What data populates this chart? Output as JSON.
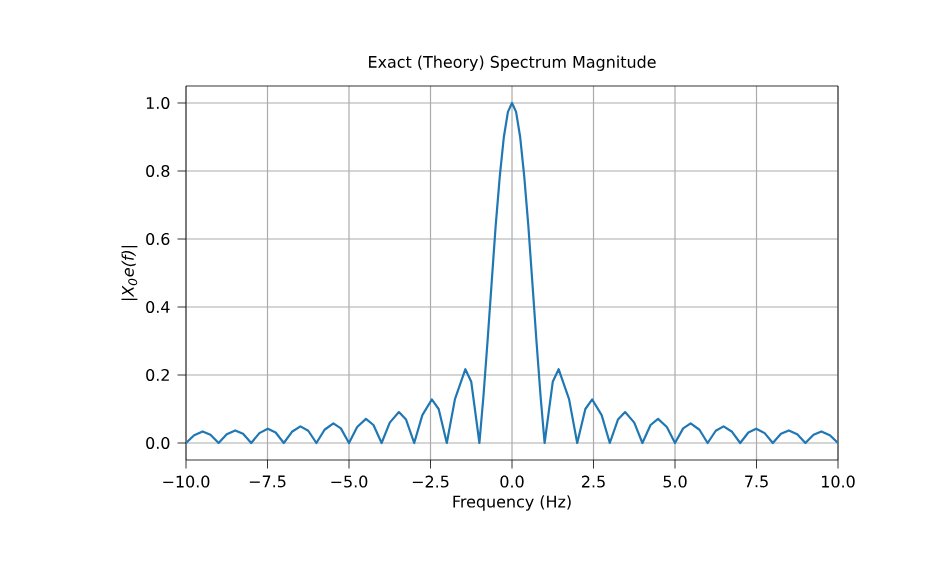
{
  "chart_data": {
    "type": "line",
    "title": "Exact (Theory) Spectrum Magnitude",
    "xlabel": "Frequency (Hz)",
    "ylabel": "|X$_{0}$e(f)|",
    "x": [
      -10,
      -9.75,
      -9.49,
      -9.25,
      -9,
      -8.75,
      -8.49,
      -8.25,
      -8,
      -7.75,
      -7.49,
      -7.25,
      -7,
      -6.75,
      -6.49,
      -6.25,
      -6,
      -5.75,
      -5.48,
      -5.25,
      -5,
      -4.75,
      -4.48,
      -4.25,
      -4,
      -3.75,
      -3.47,
      -3.25,
      -3,
      -2.75,
      -2.46,
      -2.25,
      -2,
      -1.75,
      -1.43,
      -1.25,
      -1,
      -0.875,
      -0.75,
      -0.625,
      -0.5,
      -0.375,
      -0.25,
      -0.125,
      0,
      0.125,
      0.25,
      0.375,
      0.5,
      0.625,
      0.75,
      0.875,
      1,
      1.25,
      1.43,
      1.75,
      2,
      2.25,
      2.46,
      2.75,
      3,
      3.25,
      3.47,
      3.75,
      4,
      4.25,
      4.48,
      4.75,
      5,
      5.25,
      5.48,
      5.75,
      6,
      6.25,
      6.49,
      6.75,
      7,
      7.25,
      7.49,
      7.75,
      8,
      8.25,
      8.49,
      8.75,
      9,
      9.25,
      9.49,
      9.75,
      10
    ],
    "series": [
      {
        "color": "#1f77b4",
        "values": [
          0,
          0.023,
          0.034,
          0.024,
          0,
          0.026,
          0.037,
          0.027,
          0,
          0.029,
          0.042,
          0.031,
          0,
          0.033,
          0.049,
          0.036,
          0,
          0.039,
          0.058,
          0.043,
          0,
          0.047,
          0.071,
          0.053,
          0,
          0.06,
          0.091,
          0.069,
          0,
          0.082,
          0.128,
          0.1,
          0,
          0.129,
          0.217,
          0.18,
          0,
          0.139,
          0.3,
          0.471,
          0.64,
          0.784,
          0.9,
          0.974,
          1,
          0.974,
          0.9,
          0.784,
          0.64,
          0.471,
          0.3,
          0.139,
          0,
          0.18,
          0.217,
          0.129,
          0,
          0.1,
          0.128,
          0.082,
          0,
          0.069,
          0.091,
          0.06,
          0,
          0.053,
          0.071,
          0.047,
          0,
          0.043,
          0.058,
          0.039,
          0,
          0.036,
          0.049,
          0.033,
          0,
          0.031,
          0.042,
          0.029,
          0,
          0.027,
          0.037,
          0.026,
          0,
          0.024,
          0.034,
          0.023,
          0
        ]
      }
    ],
    "xlim": [
      -10,
      10
    ],
    "ylim": [
      -0.05,
      1.05
    ],
    "xticks": [
      {
        "value": -10,
        "label": "−10.0"
      },
      {
        "value": -7.5,
        "label": "−7.5"
      },
      {
        "value": -5,
        "label": "−5.0"
      },
      {
        "value": -2.5,
        "label": "−2.5"
      },
      {
        "value": 0,
        "label": "0.0"
      },
      {
        "value": 2.5,
        "label": "2.5"
      },
      {
        "value": 5,
        "label": "5.0"
      },
      {
        "value": 7.5,
        "label": "7.5"
      },
      {
        "value": 10,
        "label": "10.0"
      }
    ],
    "yticks": [
      {
        "value": 0,
        "label": "0.0"
      },
      {
        "value": 0.2,
        "label": "0.2"
      },
      {
        "value": 0.4,
        "label": "0.4"
      },
      {
        "value": 0.6,
        "label": "0.6"
      },
      {
        "value": 0.8,
        "label": "0.8"
      },
      {
        "value": 1,
        "label": "1.0"
      }
    ],
    "grid": true,
    "marker": "none",
    "line_style": "solid"
  }
}
